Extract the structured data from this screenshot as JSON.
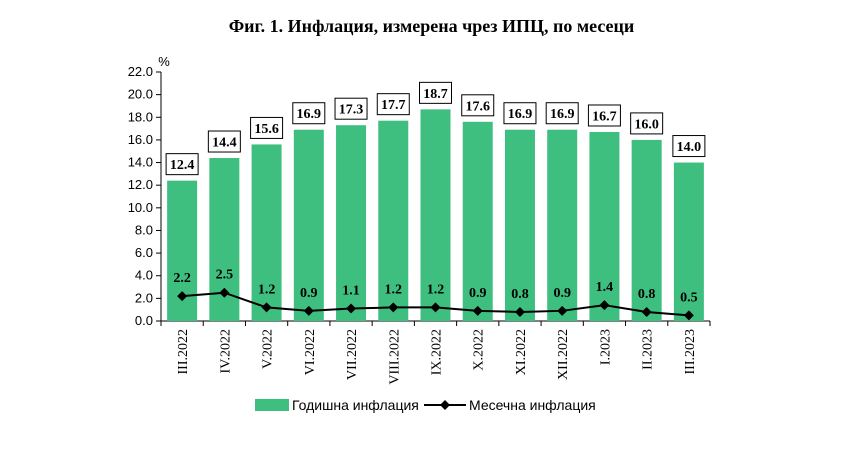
{
  "chart_data": {
    "type": "bar",
    "title": "Фиг. 1. Инфлация, измерена чрез ИПЦ, по месеци",
    "ylabel": "%",
    "ylim": [
      0,
      22
    ],
    "ytick_step": 2,
    "ytick_labels": [
      "0.0",
      "2.0",
      "4.0",
      "6.0",
      "8.0",
      "10.0",
      "12.0",
      "14.0",
      "16.0",
      "18.0",
      "20.0",
      "22.0"
    ],
    "grid": false,
    "legend_position": "bottom",
    "categories": [
      "III.2022",
      "IV.2022",
      "V.2022",
      "VI.2022",
      "VII.2022",
      "VIII.2022",
      "IX.2022",
      "X.2022",
      "XI.2022",
      "XII.2022",
      "I.2023",
      "II.2023",
      "III.2023"
    ],
    "series": [
      {
        "name": "Годишна инфлация",
        "type": "bar",
        "color": "#3fbf7f",
        "values": [
          12.4,
          14.4,
          15.6,
          16.9,
          17.3,
          17.7,
          18.7,
          17.6,
          16.9,
          16.9,
          16.7,
          16.0,
          14.0
        ],
        "labels": [
          "12.4",
          "14.4",
          "15.6",
          "16.9",
          "17.3",
          "17.7",
          "18.7",
          "17.6",
          "16.9",
          "16.9",
          "16.7",
          "16.0",
          "14.0"
        ]
      },
      {
        "name": "Месечна инфлация",
        "type": "line",
        "color": "#000000",
        "marker": "diamond",
        "values": [
          2.2,
          2.5,
          1.2,
          0.9,
          1.1,
          1.2,
          1.2,
          0.9,
          0.8,
          0.9,
          1.4,
          0.8,
          0.5
        ],
        "labels": [
          "2.2",
          "2.5",
          "1.2",
          "0.9",
          "1.1",
          "1.2",
          "1.2",
          "0.9",
          "0.8",
          "0.9",
          "1.4",
          "0.8",
          "0.5"
        ]
      }
    ]
  }
}
